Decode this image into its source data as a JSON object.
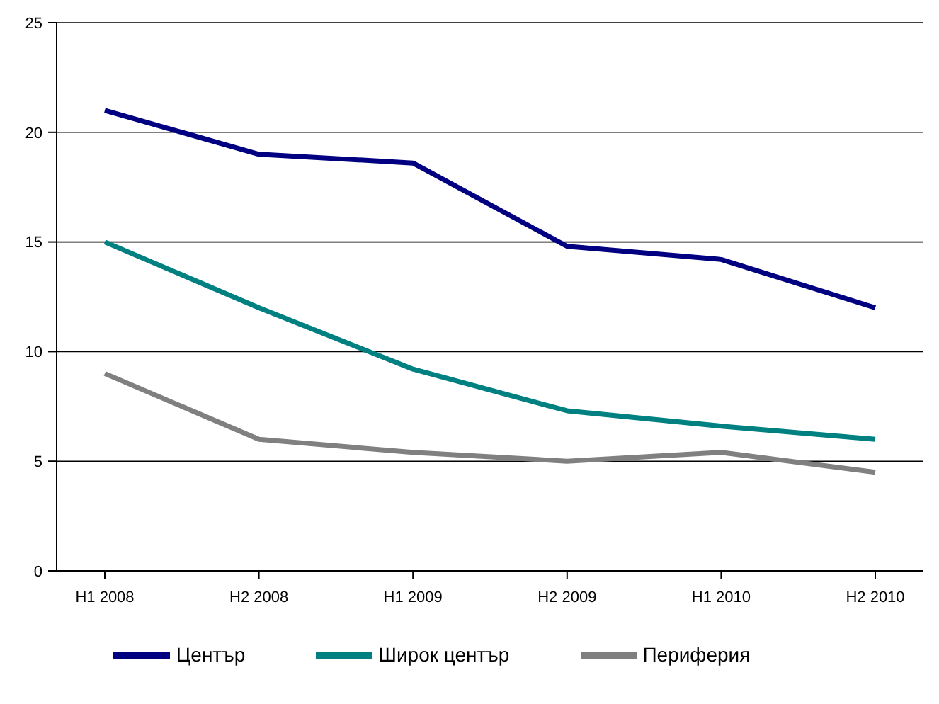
{
  "chart_data": {
    "type": "line",
    "categories": [
      "H1 2008",
      "H2 2008",
      "H1 2009",
      "H2 2009",
      "H1 2010",
      "H2 2010"
    ],
    "series": [
      {
        "name": "Център",
        "color": "#000080",
        "values": [
          21,
          19,
          18.6,
          14.8,
          14.2,
          12
        ]
      },
      {
        "name": "Широк център",
        "color": "#008080",
        "values": [
          15,
          12,
          9.2,
          7.3,
          6.6,
          6
        ]
      },
      {
        "name": "Периферия",
        "color": "#808080",
        "values": [
          9,
          6,
          5.4,
          5,
          5.4,
          4.5
        ]
      }
    ],
    "ylim": [
      0,
      25
    ],
    "yticks": [
      0,
      5,
      10,
      15,
      20,
      25
    ],
    "grid": "y",
    "legend": "bottom",
    "marker": "none",
    "line_style": "solid"
  }
}
